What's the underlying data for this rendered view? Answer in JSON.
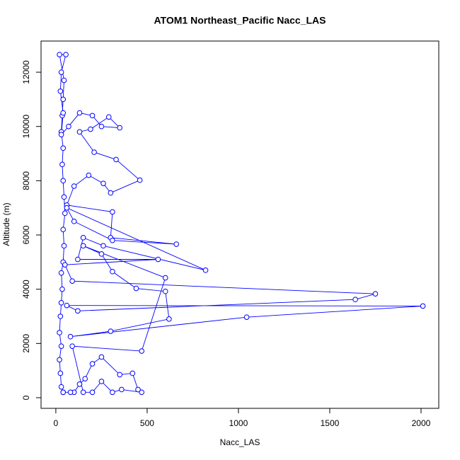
{
  "chart_data": {
    "type": "line",
    "title": "ATOM1 Northeast_Pacific Nacc_LAS",
    "xlabel": "Nacc_LAS",
    "ylabel": "Altitude (m)",
    "xlim": [
      -81,
      2097
    ],
    "ylim": [
      -392,
      13149
    ],
    "xticks": [
      0,
      500,
      1000,
      1500,
      2000
    ],
    "yticks": [
      0,
      2000,
      4000,
      6000,
      8000,
      10000,
      12000
    ],
    "series": [
      {
        "name": "Nacc_LAS",
        "color": "#0000ff",
        "x": [
          40,
          30,
          25,
          20,
          30,
          20,
          25,
          30,
          35,
          30,
          40,
          45,
          40,
          50,
          45,
          40,
          35,
          40,
          30,
          35,
          40,
          45,
          20,
          55,
          30,
          25,
          40,
          30,
          70,
          130,
          200,
          250,
          350,
          290,
          190,
          130,
          210,
          330,
          460,
          300,
          260,
          180,
          100,
          60,
          310,
          300,
          660,
          310,
          100,
          60,
          820,
          260,
          150,
          120,
          560,
          50,
          90,
          1750,
          1640,
          120,
          60,
          2010,
          1045,
          80,
          300,
          620,
          600,
          440,
          310,
          250,
          150,
          600,
          470,
          90,
          150,
          200,
          250,
          310,
          360,
          470,
          450,
          420,
          350,
          250,
          200,
          160,
          130,
          100,
          80,
          40
        ],
        "values": [
          200,
          400,
          900,
          1400,
          1900,
          2400,
          3000,
          3500,
          4000,
          4600,
          5000,
          5600,
          6200,
          6800,
          7400,
          8000,
          8600,
          9200,
          9800,
          10400,
          11000,
          11700,
          12650,
          12650,
          12000,
          11300,
          10500,
          9700,
          10000,
          10500,
          10400,
          10000,
          9950,
          10350,
          9900,
          9800,
          9050,
          8780,
          8020,
          7550,
          7900,
          8200,
          7800,
          7100,
          6850,
          5900,
          5660,
          5800,
          6500,
          7000,
          4700,
          5600,
          5900,
          5100,
          5100,
          4900,
          4300,
          3830,
          3620,
          3200,
          3400,
          3380,
          2970,
          2250,
          2450,
          2900,
          3920,
          4030,
          4650,
          5300,
          5600,
          4420,
          1720,
          1900,
          200,
          200,
          600,
          200,
          300,
          200,
          300,
          900,
          850,
          1500,
          1250,
          700,
          500,
          200,
          200,
          200
        ]
      }
    ]
  }
}
